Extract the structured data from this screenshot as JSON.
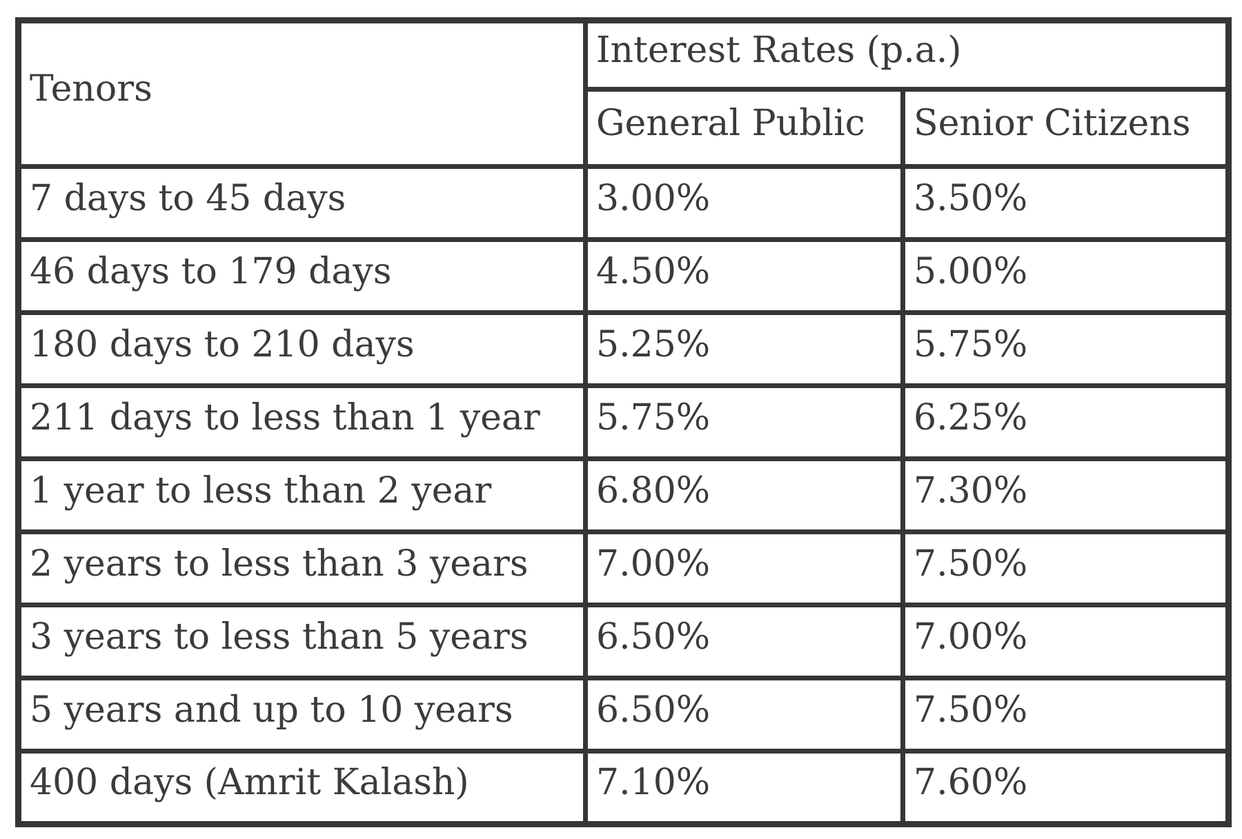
{
  "table": {
    "tenor_header": "Tenors",
    "rates_header": "Interest Rates (p.a.)",
    "col_general": "General Public",
    "col_senior": "Senior Citizens",
    "rows": [
      {
        "tenor": "7 days to 45 days",
        "general": "3.00%",
        "senior": "3.50%"
      },
      {
        "tenor": "46 days to 179 days",
        "general": "4.50%",
        "senior": "5.00%"
      },
      {
        "tenor": "180 days to 210 days",
        "general": "5.25%",
        "senior": "5.75%"
      },
      {
        "tenor": "211 days to less than 1 year",
        "general": "5.75%",
        "senior": "6.25%"
      },
      {
        "tenor": "1 year to less than 2 year",
        "general": "6.80%",
        "senior": "7.30%"
      },
      {
        "tenor": "2 years to less than 3 years",
        "general": "7.00%",
        "senior": "7.50%"
      },
      {
        "tenor": "3 years to less than 5 years",
        "general": "6.50%",
        "senior": "7.00%"
      },
      {
        "tenor": "5 years and up to 10 years",
        "general": "6.50%",
        "senior": "7.50%"
      },
      {
        "tenor": "400 days (Amrit Kalash)",
        "general": "7.10%",
        "senior": "7.60%"
      }
    ]
  },
  "colors": {
    "border": "#363636",
    "text": "#3b3b3b",
    "background": "#ffffff"
  },
  "chart_data": {
    "type": "table",
    "title": "Interest Rates (p.a.)",
    "columns": [
      "Tenors",
      "General Public",
      "Senior Citizens"
    ],
    "rows": [
      [
        "7 days to 45 days",
        "3.00%",
        "3.50%"
      ],
      [
        "46 days to 179 days",
        "4.50%",
        "5.00%"
      ],
      [
        "180 days to 210 days",
        "5.25%",
        "5.75%"
      ],
      [
        "211 days to less than 1 year",
        "5.75%",
        "6.25%"
      ],
      [
        "1 year to less than 2 year",
        "6.80%",
        "7.30%"
      ],
      [
        "2 years to less than 3 years",
        "7.00%",
        "7.50%"
      ],
      [
        "3 years to less than 5 years",
        "6.50%",
        "7.00%"
      ],
      [
        "5 years and up to 10 years",
        "6.50%",
        "7.50%"
      ],
      [
        "400 days (Amrit Kalash)",
        "7.10%",
        "7.60%"
      ]
    ]
  }
}
